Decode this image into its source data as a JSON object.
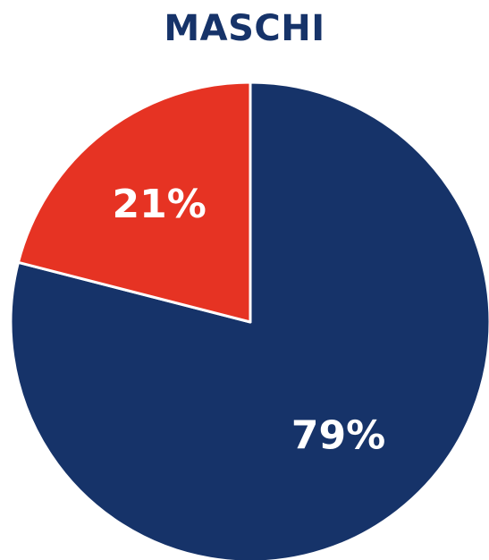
{
  "chart_data": {
    "type": "pie",
    "title": "MASCHI",
    "slices": [
      {
        "label": "79%",
        "value": 79,
        "color": "#163369"
      },
      {
        "label": "21%",
        "value": 21,
        "color": "#e63323"
      }
    ],
    "start_angle_deg": 0,
    "direction": "clockwise",
    "title_color": "#163369",
    "label_color": "#ffffff",
    "separator_color": "#ffffff"
  }
}
